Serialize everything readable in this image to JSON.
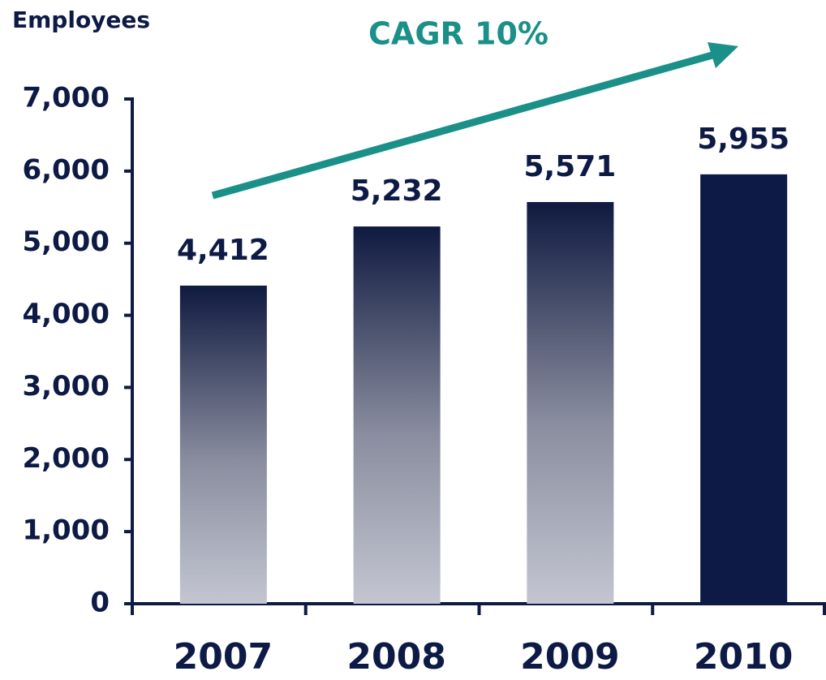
{
  "chart_data": {
    "type": "bar",
    "ylabel": "Employees",
    "annotation": "CAGR 10%",
    "categories": [
      "2007",
      "2008",
      "2009",
      "2010"
    ],
    "values": [
      4412,
      5232,
      5571,
      5955
    ],
    "value_labels": [
      "4,412",
      "5,232",
      "5,571",
      "5,955"
    ],
    "color": "#0d1a45",
    "fill_styles": [
      "gradient",
      "gradient",
      "gradient",
      "solid"
    ],
    "ylim": [
      0,
      7000
    ],
    "yticks": [
      0,
      {
        "value": 1000,
        "label": "1,000"
      },
      {
        "value": 2000,
        "label": "2,000"
      },
      {
        "value": 3000,
        "label": "3,000"
      },
      {
        "value": 4000,
        "label": "4,000"
      },
      {
        "value": 5000,
        "label": "5,000"
      },
      {
        "value": 6000,
        "label": "6,000"
      },
      {
        "value": 7000,
        "label": "7,000"
      }
    ],
    "grid": false
  }
}
